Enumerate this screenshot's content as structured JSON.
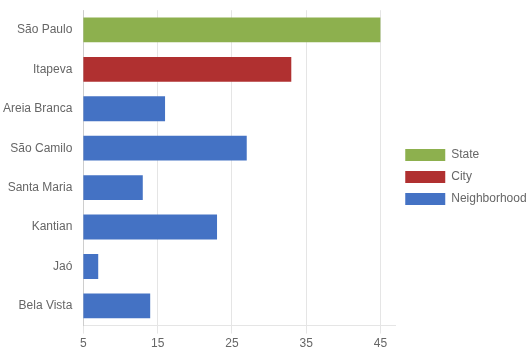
{
  "chart_data": {
    "type": "bar",
    "orientation": "horizontal",
    "categories": [
      "São Paulo",
      "Itapeva",
      "Areia Branca",
      "São Camilo",
      "Santa Maria",
      "Kantian",
      "Jaó",
      "Bela Vista"
    ],
    "series": [
      {
        "name": "State",
        "color": "#8db04e",
        "values": [
          45,
          null,
          null,
          null,
          null,
          null,
          null,
          null
        ]
      },
      {
        "name": "City",
        "color": "#b03030",
        "values": [
          null,
          33,
          null,
          null,
          null,
          null,
          null,
          null
        ]
      },
      {
        "name": "Neighborhood",
        "color": "#4472c4",
        "values": [
          null,
          null,
          16,
          27,
          13,
          23,
          7,
          14
        ]
      }
    ],
    "xlim": [
      5,
      47
    ],
    "xticks": [
      5,
      15,
      25,
      35,
      45
    ],
    "grid": true,
    "legend": "right"
  }
}
